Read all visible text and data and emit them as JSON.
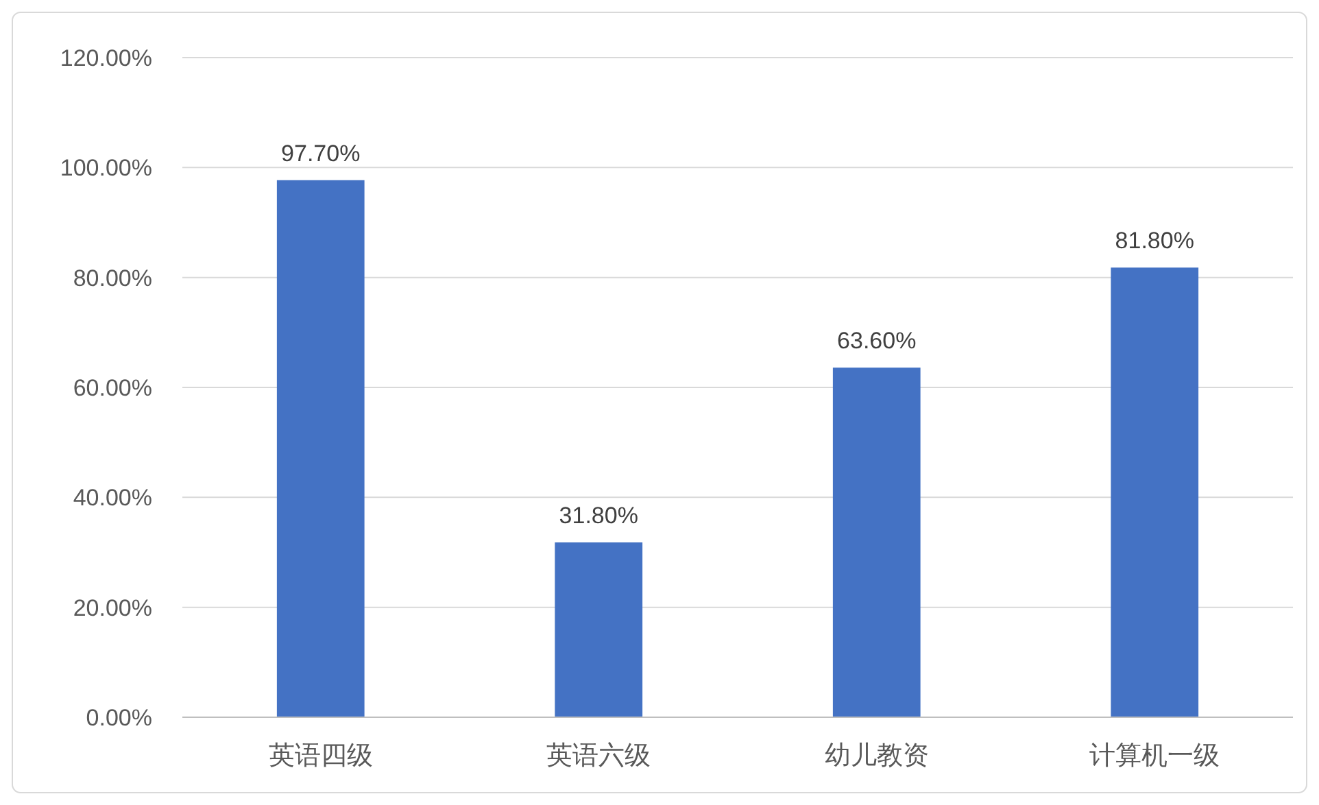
{
  "chart_data": {
    "type": "bar",
    "categories": [
      "英语四级",
      "英语六级",
      "幼儿教资",
      "计算机一级"
    ],
    "values": [
      97.7,
      31.8,
      63.6,
      81.8
    ],
    "color": "#4472c4",
    "value_labels": [
      "97.70%",
      "31.80%",
      "63.60%",
      "81.80%"
    ],
    "ylim": [
      0,
      120
    ],
    "yticks": [
      {
        "value": 0,
        "label": "0.00%"
      },
      {
        "value": 20,
        "label": "20.00%"
      },
      {
        "value": 40,
        "label": "40.00%"
      },
      {
        "value": 60,
        "label": "60.00%"
      },
      {
        "value": 80,
        "label": "80.00%"
      },
      {
        "value": 100,
        "label": "100.00%"
      },
      {
        "value": 120,
        "label": "120.00%"
      }
    ],
    "grid": "y"
  }
}
